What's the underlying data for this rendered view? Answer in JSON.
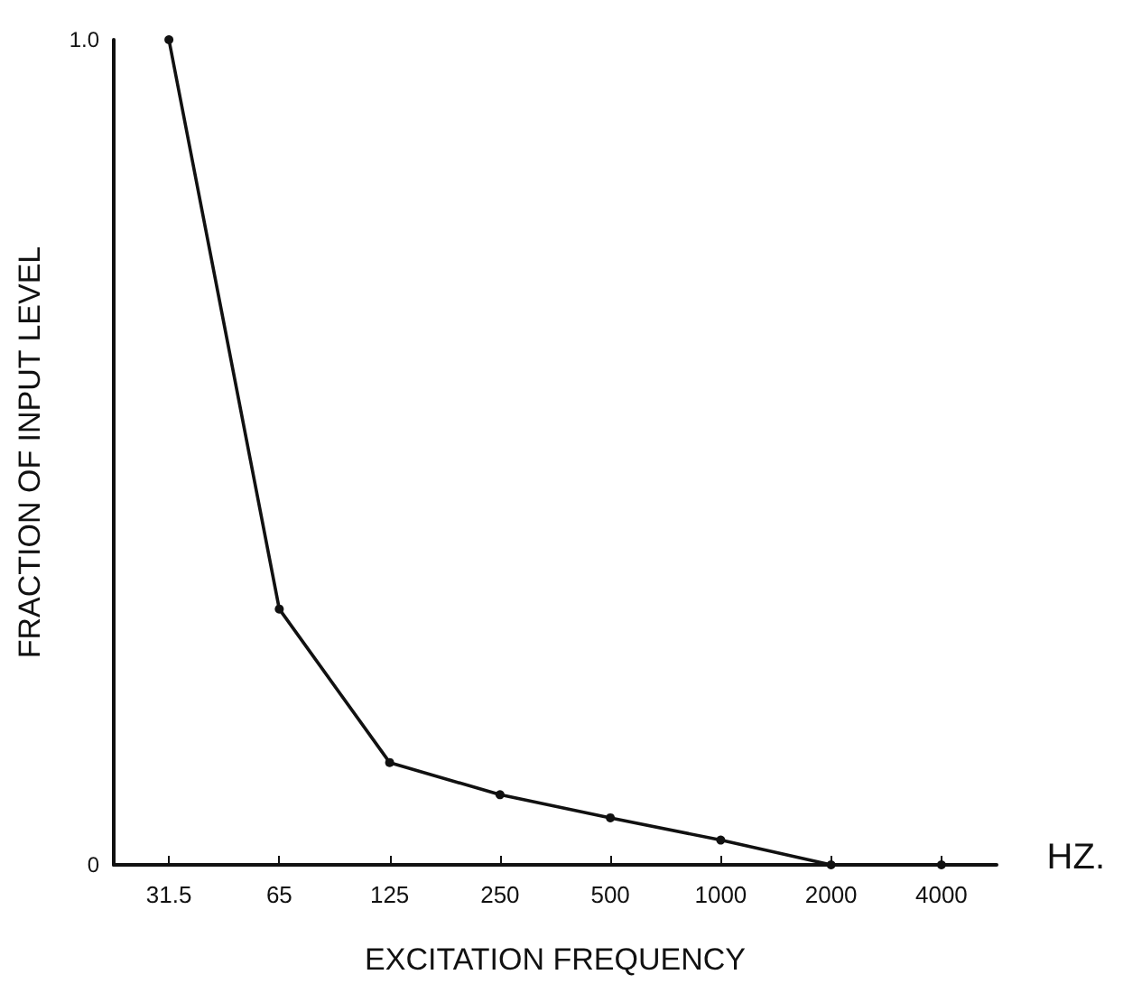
{
  "chart_data": {
    "type": "line",
    "xlabel": "EXCITATION FREQUENCY",
    "ylabel": "FRACTION OF INPUT LEVEL",
    "categories": [
      "31.5",
      "65",
      "125",
      "250",
      "500",
      "1000",
      "2000",
      "4000"
    ],
    "series": [
      {
        "color": "#111111",
        "values": [
          1.0,
          0.31,
          0.124,
          0.085,
          0.057,
          0.03,
          0,
          0
        ]
      }
    ],
    "ylim": [
      0,
      1
    ],
    "yticks": [
      0,
      {
        "value": 1,
        "label": "1.0"
      }
    ],
    "annotations": [
      "HZ."
    ],
    "marker": "circle",
    "line_style": "solid"
  }
}
